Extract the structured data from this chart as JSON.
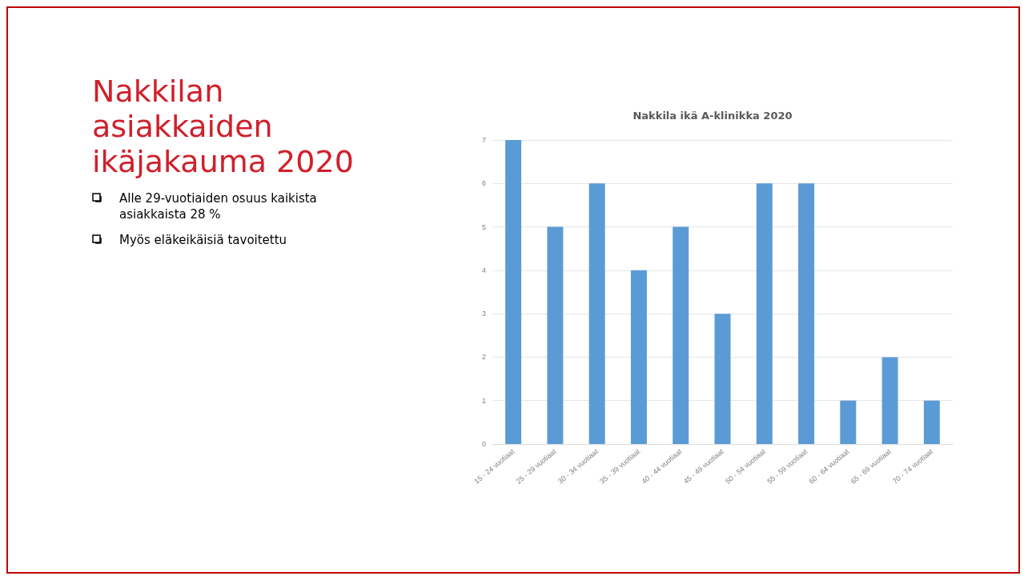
{
  "chart_data": {
    "type": "bar",
    "title": "Nakkilan asiakkaiden ikäjakauma 2020",
    "subtitle": "Nakkila ikä A-klinikka 2020",
    "annotations": [
      "Alle 29-vuotiaiden  osuus kaikista asiakkaista 28 %",
      "Myös eläkeikäisiä tavoitettu"
    ],
    "categories": [
      "15 - 24 vuotiaat",
      "25 - 29 vuotiaat",
      "30 - 34 vuotiaat",
      "35 - 39 vuotiaat",
      "40 - 44 vuotiaat",
      "45 - 49 vuotiaat",
      "50 - 54 vuotiaat",
      "55 - 59 vuotiaat",
      "60 - 64 vuotiaat",
      "65 - 69 vuotiaat",
      "70 - 74 vuotiaat"
    ],
    "values": [
      7,
      5,
      6,
      4,
      5,
      3,
      6,
      6,
      1,
      2,
      1
    ],
    "color": "#5b9bd5",
    "ylim": [
      0,
      7
    ],
    "yticks": [
      0,
      1,
      2,
      3,
      4,
      5,
      6,
      7
    ],
    "grid": "y"
  }
}
